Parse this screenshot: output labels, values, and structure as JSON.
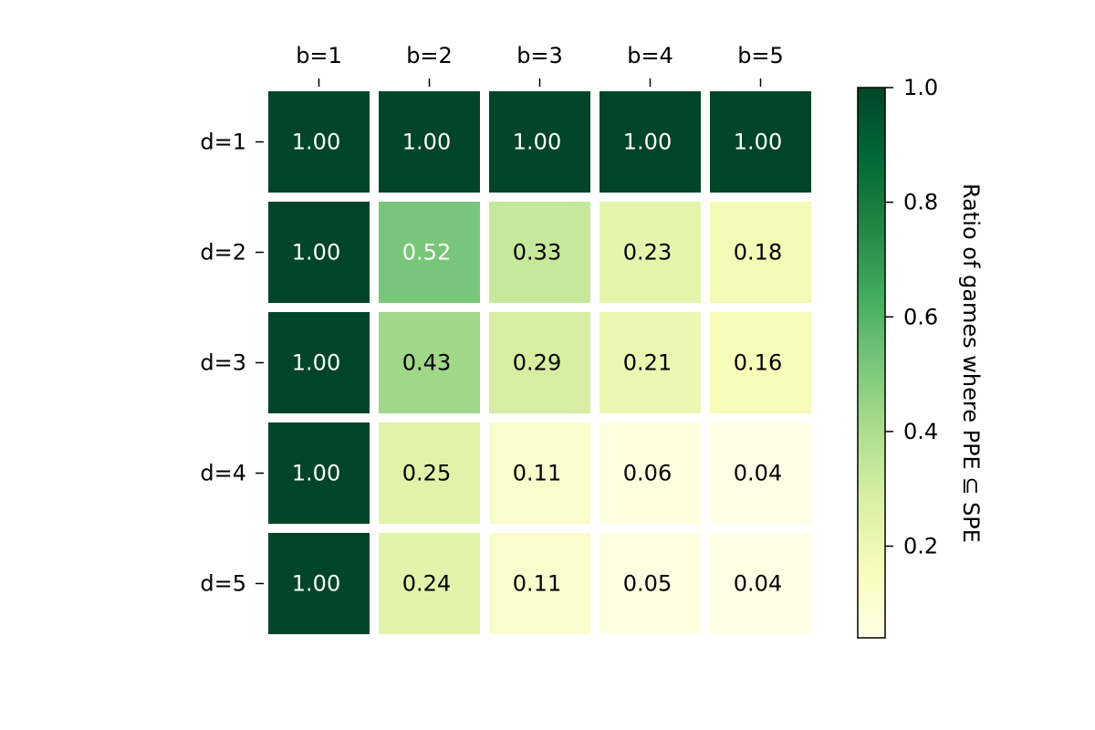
{
  "chart_data": {
    "type": "heatmap",
    "title": "",
    "x_categories": [
      "b=1",
      "b=2",
      "b=3",
      "b=4",
      "b=5"
    ],
    "y_categories": [
      "d=1",
      "d=2",
      "d=3",
      "d=4",
      "d=5"
    ],
    "values": [
      [
        1.0,
        1.0,
        1.0,
        1.0,
        1.0
      ],
      [
        1.0,
        0.52,
        0.33,
        0.23,
        0.18
      ],
      [
        1.0,
        0.43,
        0.29,
        0.21,
        0.16
      ],
      [
        1.0,
        0.25,
        0.11,
        0.06,
        0.04
      ],
      [
        1.0,
        0.24,
        0.11,
        0.05,
        0.04
      ]
    ],
    "value_format": "0.00",
    "x_axis_position": "top",
    "colormap": "YlGn",
    "colorbar": {
      "label": "Ratio of games where PPE ⊆ SPE",
      "range": [
        0.04,
        1.0
      ],
      "ticks": [
        0.2,
        0.4,
        0.6,
        0.8,
        1.0
      ],
      "tick_labels": [
        "0.2",
        "0.4",
        "0.6",
        "0.8",
        "1.0"
      ]
    },
    "grid": false
  }
}
